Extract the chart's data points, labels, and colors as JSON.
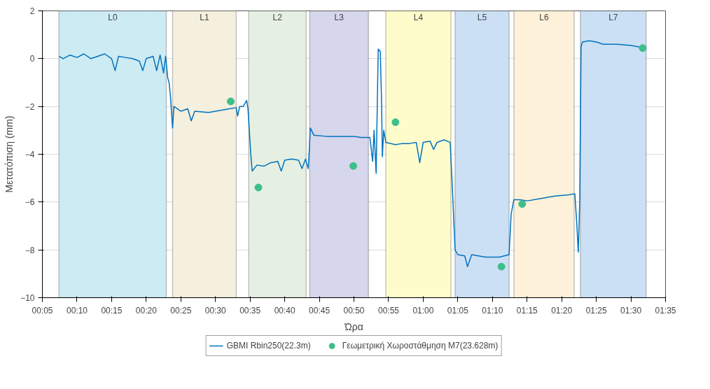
{
  "chart_data": {
    "type": "line",
    "xlabel": "Ώρα",
    "ylabel": "Μετατόπιση (mm)",
    "xlim": [
      0.0833,
      1.5833
    ],
    "ylim": [
      -10,
      2
    ],
    "xticks": [
      {
        "value": 0.0833,
        "label": "00:05"
      },
      {
        "value": 0.1667,
        "label": "00:10"
      },
      {
        "value": 0.25,
        "label": "00:15"
      },
      {
        "value": 0.3333,
        "label": "00:20"
      },
      {
        "value": 0.4167,
        "label": "00:25"
      },
      {
        "value": 0.5,
        "label": "00:30"
      },
      {
        "value": 0.5833,
        "label": "00:35"
      },
      {
        "value": 0.6667,
        "label": "00:40"
      },
      {
        "value": 0.75,
        "label": "00:45"
      },
      {
        "value": 0.8333,
        "label": "00:50"
      },
      {
        "value": 0.9167,
        "label": "00:55"
      },
      {
        "value": 1.0,
        "label": "01:00"
      },
      {
        "value": 1.0833,
        "label": "01:05"
      },
      {
        "value": 1.1667,
        "label": "01:10"
      },
      {
        "value": 1.25,
        "label": "01:15"
      },
      {
        "value": 1.3333,
        "label": "01:20"
      },
      {
        "value": 1.4167,
        "label": "01:25"
      },
      {
        "value": 1.5,
        "label": "01:30"
      },
      {
        "value": 1.5833,
        "label": "01:35"
      }
    ],
    "yticks": [
      -10,
      -8,
      -6,
      -4,
      -2,
      0,
      2
    ],
    "grid": true,
    "legend": "bottom",
    "bands": [
      {
        "axis": "x",
        "from": 0.1233,
        "to": 0.3817,
        "label": "L0",
        "color": "#cdebf2"
      },
      {
        "axis": "x",
        "from": 0.3967,
        "to": 0.55,
        "label": "L1",
        "color": "#f5efdd"
      },
      {
        "axis": "x",
        "from": 0.58,
        "to": 0.7183,
        "label": "L2",
        "color": "#e6f0e2"
      },
      {
        "axis": "x",
        "from": 0.7267,
        "to": 0.8683,
        "label": "L3",
        "color": "#d6d6ec"
      },
      {
        "axis": "x",
        "from": 0.91,
        "to": 1.0667,
        "label": "L4",
        "color": "#fffccc"
      },
      {
        "axis": "x",
        "from": 1.0767,
        "to": 1.2067,
        "label": "L5",
        "color": "#cce0f5"
      },
      {
        "axis": "x",
        "from": 1.2183,
        "to": 1.3633,
        "label": "L6",
        "color": "#fdf2d9"
      },
      {
        "axis": "x",
        "from": 1.3783,
        "to": 1.5367,
        "label": "L7",
        "color": "#cce0f5"
      }
    ],
    "series": [
      {
        "name": "GBMI Rbin250(22.3m)",
        "color": "#0072bd",
        "line_style": "solid",
        "marker": "none",
        "x": [
          0.1233,
          0.1333,
          0.15,
          0.1667,
          0.1833,
          0.2,
          0.2167,
          0.2333,
          0.25,
          0.2583,
          0.2667,
          0.2833,
          0.3,
          0.3167,
          0.325,
          0.3333,
          0.35,
          0.3583,
          0.3667,
          0.375,
          0.38,
          0.385,
          0.3883,
          0.3917,
          0.3967,
          0.4,
          0.4167,
          0.4333,
          0.4417,
          0.45,
          0.4833,
          0.5167,
          0.5333,
          0.55,
          0.5533,
          0.5583,
          0.5667,
          0.575,
          0.5783,
          0.585,
          0.5883,
          0.6,
          0.6167,
          0.6333,
          0.65,
          0.6583,
          0.6667,
          0.6833,
          0.7,
          0.7083,
          0.7167,
          0.7233,
          0.7267,
          0.7283,
          0.7367,
          0.7667,
          0.8,
          0.8333,
          0.85,
          0.8717,
          0.8783,
          0.8817,
          0.8867,
          0.8917,
          0.8967,
          0.9,
          0.9017,
          0.905,
          0.91,
          0.9333,
          0.95,
          0.9667,
          0.9833,
          0.9917,
          1.0,
          1.0167,
          1.025,
          1.0333,
          1.05,
          1.065,
          1.0717,
          1.0767,
          1.0833,
          1.1,
          1.1067,
          1.1167,
          1.15,
          1.1833,
          1.2067,
          1.2117,
          1.2183,
          1.2333,
          1.25,
          1.2833,
          1.3167,
          1.35,
          1.365,
          1.37,
          1.3733,
          1.3767,
          1.38,
          1.3833,
          1.4,
          1.4167,
          1.4333,
          1.4667,
          1.5,
          1.5333
        ],
        "values": [
          0.1,
          0.0,
          0.15,
          0.05,
          0.2,
          0.0,
          0.1,
          0.2,
          0.0,
          -0.5,
          0.1,
          0.05,
          0.0,
          -0.1,
          -0.5,
          0.0,
          0.1,
          -0.5,
          0.15,
          -0.6,
          0.1,
          -0.8,
          -1.0,
          -1.6,
          -2.9,
          -2.0,
          -2.2,
          -2.1,
          -2.6,
          -2.2,
          -2.25,
          -2.15,
          -2.1,
          -2.05,
          -2.4,
          -2.0,
          -2.0,
          -1.75,
          -2.1,
          -4.0,
          -4.7,
          -4.45,
          -4.5,
          -4.35,
          -4.3,
          -4.7,
          -4.25,
          -4.2,
          -4.25,
          -4.6,
          -4.2,
          -4.6,
          -3.5,
          -2.9,
          -3.2,
          -3.25,
          -3.25,
          -3.25,
          -3.3,
          -3.3,
          -4.3,
          -3.0,
          -4.8,
          0.4,
          0.3,
          -2.0,
          -4.1,
          -3.0,
          -3.5,
          -3.6,
          -3.55,
          -3.55,
          -3.5,
          -4.35,
          -3.5,
          -3.45,
          -3.8,
          -3.5,
          -3.4,
          -3.5,
          -6.0,
          -8.0,
          -8.2,
          -8.25,
          -8.7,
          -8.2,
          -8.3,
          -8.3,
          -8.2,
          -6.5,
          -5.9,
          -5.9,
          -5.95,
          -5.85,
          -5.75,
          -5.7,
          -5.65,
          -7.0,
          -8.1,
          -6.0,
          0.5,
          0.7,
          0.75,
          0.7,
          0.6,
          0.6,
          0.55,
          0.45
        ]
      },
      {
        "name": "Γεωμετρική Χωροστάθμηση M7(23.628m)",
        "type": "scatter",
        "color": "#3dbf8a",
        "marker": "circle",
        "x": [
          0.5367,
          0.6033,
          0.8317,
          0.9333,
          1.1883,
          1.2383,
          1.5283
        ],
        "values": [
          -1.79,
          -5.39,
          -4.49,
          -2.66,
          -8.7,
          -6.08,
          0.44
        ]
      }
    ]
  }
}
